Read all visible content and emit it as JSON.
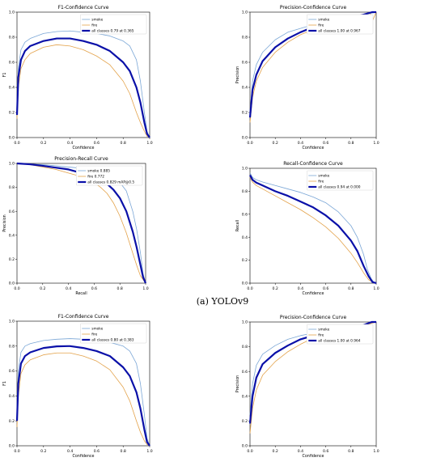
{
  "caption": "(a) YOLOv9",
  "colors": {
    "smoke": "#7aa6d6",
    "fire": "#e3a24a",
    "all": "#0a10a8",
    "grid": "#dddddd",
    "axis": "#000000"
  },
  "chart_data": [
    {
      "type": "line",
      "title": "F1-Confidence Curve",
      "xlabel": "Confidence",
      "ylabel": "F1",
      "xlim": [
        0,
        1
      ],
      "ylim": [
        0,
        1
      ],
      "xticks": [
        "0.0",
        "0.2",
        "0.4",
        "0.6",
        "0.8",
        "1.0"
      ],
      "yticks": [
        "0.0",
        "0.2",
        "0.4",
        "0.6",
        "0.8",
        "1.0"
      ],
      "legend_position": "top-right",
      "legend": [
        "smoke",
        "fire",
        "all classes 0.79 at 0.365"
      ],
      "series": [
        {
          "name": "smoke",
          "x": [
            0,
            0.01,
            0.03,
            0.06,
            0.1,
            0.2,
            0.3,
            0.4,
            0.5,
            0.6,
            0.7,
            0.8,
            0.85,
            0.9,
            0.93,
            0.96,
            0.98,
            1.0
          ],
          "y": [
            0.2,
            0.55,
            0.7,
            0.76,
            0.79,
            0.83,
            0.845,
            0.85,
            0.84,
            0.83,
            0.81,
            0.77,
            0.73,
            0.62,
            0.45,
            0.2,
            0.05,
            0.0
          ]
        },
        {
          "name": "fire",
          "x": [
            0,
            0.01,
            0.03,
            0.06,
            0.1,
            0.2,
            0.3,
            0.4,
            0.5,
            0.6,
            0.7,
            0.8,
            0.85,
            0.9,
            0.93,
            0.96,
            0.98,
            1.0
          ],
          "y": [
            0.15,
            0.4,
            0.55,
            0.62,
            0.67,
            0.72,
            0.74,
            0.73,
            0.7,
            0.65,
            0.58,
            0.45,
            0.35,
            0.2,
            0.12,
            0.05,
            0.01,
            0.0
          ]
        },
        {
          "name": "all classes 0.79 at 0.365",
          "x": [
            0,
            0.01,
            0.03,
            0.06,
            0.1,
            0.2,
            0.3,
            0.365,
            0.4,
            0.5,
            0.6,
            0.7,
            0.8,
            0.85,
            0.9,
            0.93,
            0.96,
            0.98,
            1.0
          ],
          "y": [
            0.18,
            0.48,
            0.62,
            0.69,
            0.73,
            0.77,
            0.79,
            0.79,
            0.79,
            0.77,
            0.74,
            0.69,
            0.6,
            0.53,
            0.4,
            0.28,
            0.12,
            0.03,
            0.0
          ]
        }
      ]
    },
    {
      "type": "line",
      "title": "Precision-Confidence Curve",
      "xlabel": "Confidence",
      "ylabel": "Precision",
      "xlim": [
        0,
        1
      ],
      "ylim": [
        0,
        1
      ],
      "xticks": [
        "0.0",
        "0.2",
        "0.4",
        "0.6",
        "0.8",
        "1.0"
      ],
      "yticks": [
        "0.0",
        "0.2",
        "0.4",
        "0.6",
        "0.8",
        "1.0"
      ],
      "legend_position": "top-right",
      "legend": [
        "smoke",
        "fire",
        "all classes 1.00 at 0.967"
      ],
      "series": [
        {
          "name": "smoke",
          "x": [
            0,
            0.02,
            0.05,
            0.1,
            0.2,
            0.3,
            0.4,
            0.5,
            0.6,
            0.7,
            0.8,
            0.9,
            0.95,
            1.0
          ],
          "y": [
            0.2,
            0.45,
            0.58,
            0.68,
            0.78,
            0.84,
            0.87,
            0.9,
            0.92,
            0.94,
            0.96,
            0.98,
            0.99,
            1.0
          ]
        },
        {
          "name": "fire",
          "x": [
            0,
            0.02,
            0.05,
            0.1,
            0.2,
            0.3,
            0.4,
            0.5,
            0.6,
            0.7,
            0.8,
            0.9,
            0.93,
            0.95,
            0.97,
            1.0
          ],
          "y": [
            0.12,
            0.32,
            0.45,
            0.56,
            0.68,
            0.76,
            0.82,
            0.86,
            0.9,
            0.93,
            0.95,
            0.98,
            0.99,
            1.0,
            0.93,
            1.0
          ]
        },
        {
          "name": "all classes 1.00 at 0.967",
          "x": [
            0,
            0.02,
            0.05,
            0.1,
            0.2,
            0.3,
            0.4,
            0.5,
            0.6,
            0.7,
            0.8,
            0.9,
            0.967,
            1.0
          ],
          "y": [
            0.16,
            0.38,
            0.5,
            0.61,
            0.72,
            0.79,
            0.84,
            0.88,
            0.91,
            0.935,
            0.955,
            0.98,
            1.0,
            1.0
          ]
        }
      ]
    },
    {
      "type": "line",
      "title": "Precision-Recall Curve",
      "xlabel": "Recall",
      "ylabel": "Precision",
      "xlim": [
        0,
        1
      ],
      "ylim": [
        0,
        1
      ],
      "xticks": [
        "0.0",
        "0.2",
        "0.4",
        "0.6",
        "0.8",
        "1.0"
      ],
      "yticks": [
        "0.0",
        "0.2",
        "0.4",
        "0.6",
        "0.8",
        "1.0"
      ],
      "legend_position": "top-right",
      "legend": [
        "smoke 0.885",
        "fire 0.772",
        "all classes 0.829 mAP@0.5"
      ],
      "series": [
        {
          "name": "smoke 0.885",
          "x": [
            0,
            0.1,
            0.2,
            0.3,
            0.4,
            0.5,
            0.6,
            0.7,
            0.75,
            0.8,
            0.85,
            0.9,
            0.93,
            0.96,
            0.98,
            1.0
          ],
          "y": [
            1.0,
            0.995,
            0.99,
            0.98,
            0.97,
            0.96,
            0.94,
            0.91,
            0.88,
            0.84,
            0.77,
            0.6,
            0.45,
            0.25,
            0.08,
            0.0
          ]
        },
        {
          "name": "fire 0.772",
          "x": [
            0,
            0.1,
            0.2,
            0.3,
            0.4,
            0.5,
            0.6,
            0.65,
            0.7,
            0.75,
            0.8,
            0.85,
            0.9,
            0.93,
            0.96,
            1.0
          ],
          "y": [
            1.0,
            0.99,
            0.97,
            0.95,
            0.92,
            0.89,
            0.84,
            0.8,
            0.75,
            0.67,
            0.56,
            0.42,
            0.25,
            0.15,
            0.06,
            0.0
          ]
        },
        {
          "name": "all classes 0.829 mAP@0.5",
          "x": [
            0,
            0.1,
            0.2,
            0.3,
            0.4,
            0.5,
            0.6,
            0.7,
            0.75,
            0.8,
            0.85,
            0.9,
            0.93,
            0.96,
            0.98,
            1.0
          ],
          "y": [
            1.0,
            0.993,
            0.98,
            0.965,
            0.95,
            0.92,
            0.89,
            0.83,
            0.78,
            0.71,
            0.6,
            0.43,
            0.3,
            0.15,
            0.05,
            0.0
          ]
        }
      ]
    },
    {
      "type": "line",
      "title": "Recall-Confidence Curve",
      "xlabel": "Confidence",
      "ylabel": "Recall",
      "xlim": [
        0,
        1
      ],
      "ylim": [
        0,
        1
      ],
      "xticks": [
        "0.0",
        "0.2",
        "0.4",
        "0.6",
        "0.8",
        "1.0"
      ],
      "yticks": [
        "0.0",
        "0.2",
        "0.4",
        "0.6",
        "0.8",
        "1.0"
      ],
      "legend_position": "top-right",
      "legend": [
        "smoke",
        "fire",
        "all classes 0.94 at 0.000"
      ],
      "series": [
        {
          "name": "smoke",
          "x": [
            0,
            0.02,
            0.05,
            0.1,
            0.2,
            0.3,
            0.4,
            0.5,
            0.6,
            0.7,
            0.8,
            0.85,
            0.9,
            0.93,
            0.96,
            0.98,
            1.0
          ],
          "y": [
            0.96,
            0.92,
            0.9,
            0.88,
            0.85,
            0.82,
            0.79,
            0.75,
            0.7,
            0.62,
            0.5,
            0.4,
            0.25,
            0.12,
            0.04,
            0.01,
            0.0
          ]
        },
        {
          "name": "fire",
          "x": [
            0,
            0.02,
            0.05,
            0.1,
            0.2,
            0.3,
            0.4,
            0.5,
            0.6,
            0.7,
            0.8,
            0.85,
            0.9,
            0.94,
            0.97,
            1.0
          ],
          "y": [
            0.92,
            0.88,
            0.85,
            0.82,
            0.76,
            0.7,
            0.64,
            0.57,
            0.49,
            0.39,
            0.26,
            0.18,
            0.09,
            0.03,
            0.01,
            0.0
          ]
        },
        {
          "name": "all classes 0.94 at 0.000",
          "x": [
            0,
            0.02,
            0.05,
            0.1,
            0.2,
            0.3,
            0.4,
            0.5,
            0.6,
            0.7,
            0.8,
            0.85,
            0.9,
            0.94,
            0.97,
            1.0
          ],
          "y": [
            0.94,
            0.9,
            0.875,
            0.85,
            0.8,
            0.76,
            0.71,
            0.66,
            0.59,
            0.5,
            0.37,
            0.28,
            0.15,
            0.06,
            0.01,
            0.0
          ]
        }
      ]
    },
    {
      "type": "line",
      "title": "F1-Confidence Curve",
      "xlabel": "Confidence",
      "ylabel": "F1",
      "xlim": [
        0,
        1
      ],
      "ylim": [
        0,
        1
      ],
      "xticks": [
        "0.0",
        "0.2",
        "0.4",
        "0.6",
        "0.8",
        "1.0"
      ],
      "yticks": [
        "0.0",
        "0.2",
        "0.4",
        "0.6",
        "0.8",
        "1.0"
      ],
      "legend_position": "top-right",
      "legend": [
        "smoke",
        "fire",
        "all classes 0.80 at 0.383"
      ],
      "series": [
        {
          "name": "smoke",
          "x": [
            0,
            0.01,
            0.03,
            0.06,
            0.1,
            0.2,
            0.3,
            0.4,
            0.5,
            0.6,
            0.7,
            0.8,
            0.85,
            0.9,
            0.93,
            0.96,
            0.98,
            1.0
          ],
          "y": [
            0.3,
            0.6,
            0.75,
            0.8,
            0.82,
            0.845,
            0.855,
            0.86,
            0.855,
            0.845,
            0.83,
            0.8,
            0.76,
            0.66,
            0.5,
            0.25,
            0.06,
            0.0
          ]
        },
        {
          "name": "fire",
          "x": [
            0,
            0.01,
            0.03,
            0.06,
            0.1,
            0.2,
            0.3,
            0.4,
            0.5,
            0.6,
            0.7,
            0.8,
            0.85,
            0.9,
            0.93,
            0.96,
            0.98,
            1.0
          ],
          "y": [
            0.15,
            0.4,
            0.58,
            0.65,
            0.69,
            0.73,
            0.745,
            0.745,
            0.72,
            0.68,
            0.61,
            0.47,
            0.36,
            0.2,
            0.11,
            0.04,
            0.01,
            0.0
          ]
        },
        {
          "name": "all classes 0.80 at 0.383",
          "x": [
            0,
            0.01,
            0.03,
            0.06,
            0.1,
            0.2,
            0.3,
            0.383,
            0.4,
            0.5,
            0.6,
            0.7,
            0.8,
            0.85,
            0.9,
            0.93,
            0.96,
            0.98,
            1.0
          ],
          "y": [
            0.2,
            0.5,
            0.66,
            0.72,
            0.75,
            0.785,
            0.798,
            0.8,
            0.8,
            0.785,
            0.76,
            0.72,
            0.63,
            0.56,
            0.43,
            0.3,
            0.13,
            0.03,
            0.0
          ]
        }
      ]
    },
    {
      "type": "line",
      "title": "Precision-Confidence Curve",
      "xlabel": "Confidence",
      "ylabel": "Precision",
      "xlim": [
        0,
        1
      ],
      "ylim": [
        0,
        1
      ],
      "xticks": [
        "0.0",
        "0.2",
        "0.4",
        "0.6",
        "0.8",
        "1.0"
      ],
      "yticks": [
        "0.0",
        "0.2",
        "0.4",
        "0.6",
        "0.8",
        "1.0"
      ],
      "legend_position": "top-right",
      "legend": [
        "smoke",
        "fire",
        "all classes 1.00 at 0.964"
      ],
      "series": [
        {
          "name": "smoke",
          "x": [
            0,
            0.02,
            0.05,
            0.1,
            0.2,
            0.3,
            0.4,
            0.5,
            0.6,
            0.7,
            0.8,
            0.9,
            0.95,
            1.0
          ],
          "y": [
            0.25,
            0.5,
            0.65,
            0.74,
            0.81,
            0.86,
            0.89,
            0.91,
            0.93,
            0.94,
            0.955,
            0.975,
            0.99,
            1.0
          ]
        },
        {
          "name": "fire",
          "x": [
            0,
            0.02,
            0.05,
            0.1,
            0.2,
            0.3,
            0.4,
            0.5,
            0.6,
            0.7,
            0.8,
            0.9,
            0.95,
            1.0
          ],
          "y": [
            0.1,
            0.3,
            0.45,
            0.57,
            0.68,
            0.76,
            0.82,
            0.87,
            0.9,
            0.93,
            0.95,
            0.97,
            0.985,
            1.0
          ]
        },
        {
          "name": "all classes 1.00 at 0.964",
          "x": [
            0,
            0.02,
            0.05,
            0.1,
            0.2,
            0.3,
            0.4,
            0.5,
            0.6,
            0.7,
            0.8,
            0.9,
            0.964,
            1.0
          ],
          "y": [
            0.18,
            0.4,
            0.55,
            0.66,
            0.75,
            0.81,
            0.86,
            0.89,
            0.915,
            0.935,
            0.955,
            0.975,
            1.0,
            1.0
          ]
        }
      ]
    }
  ]
}
